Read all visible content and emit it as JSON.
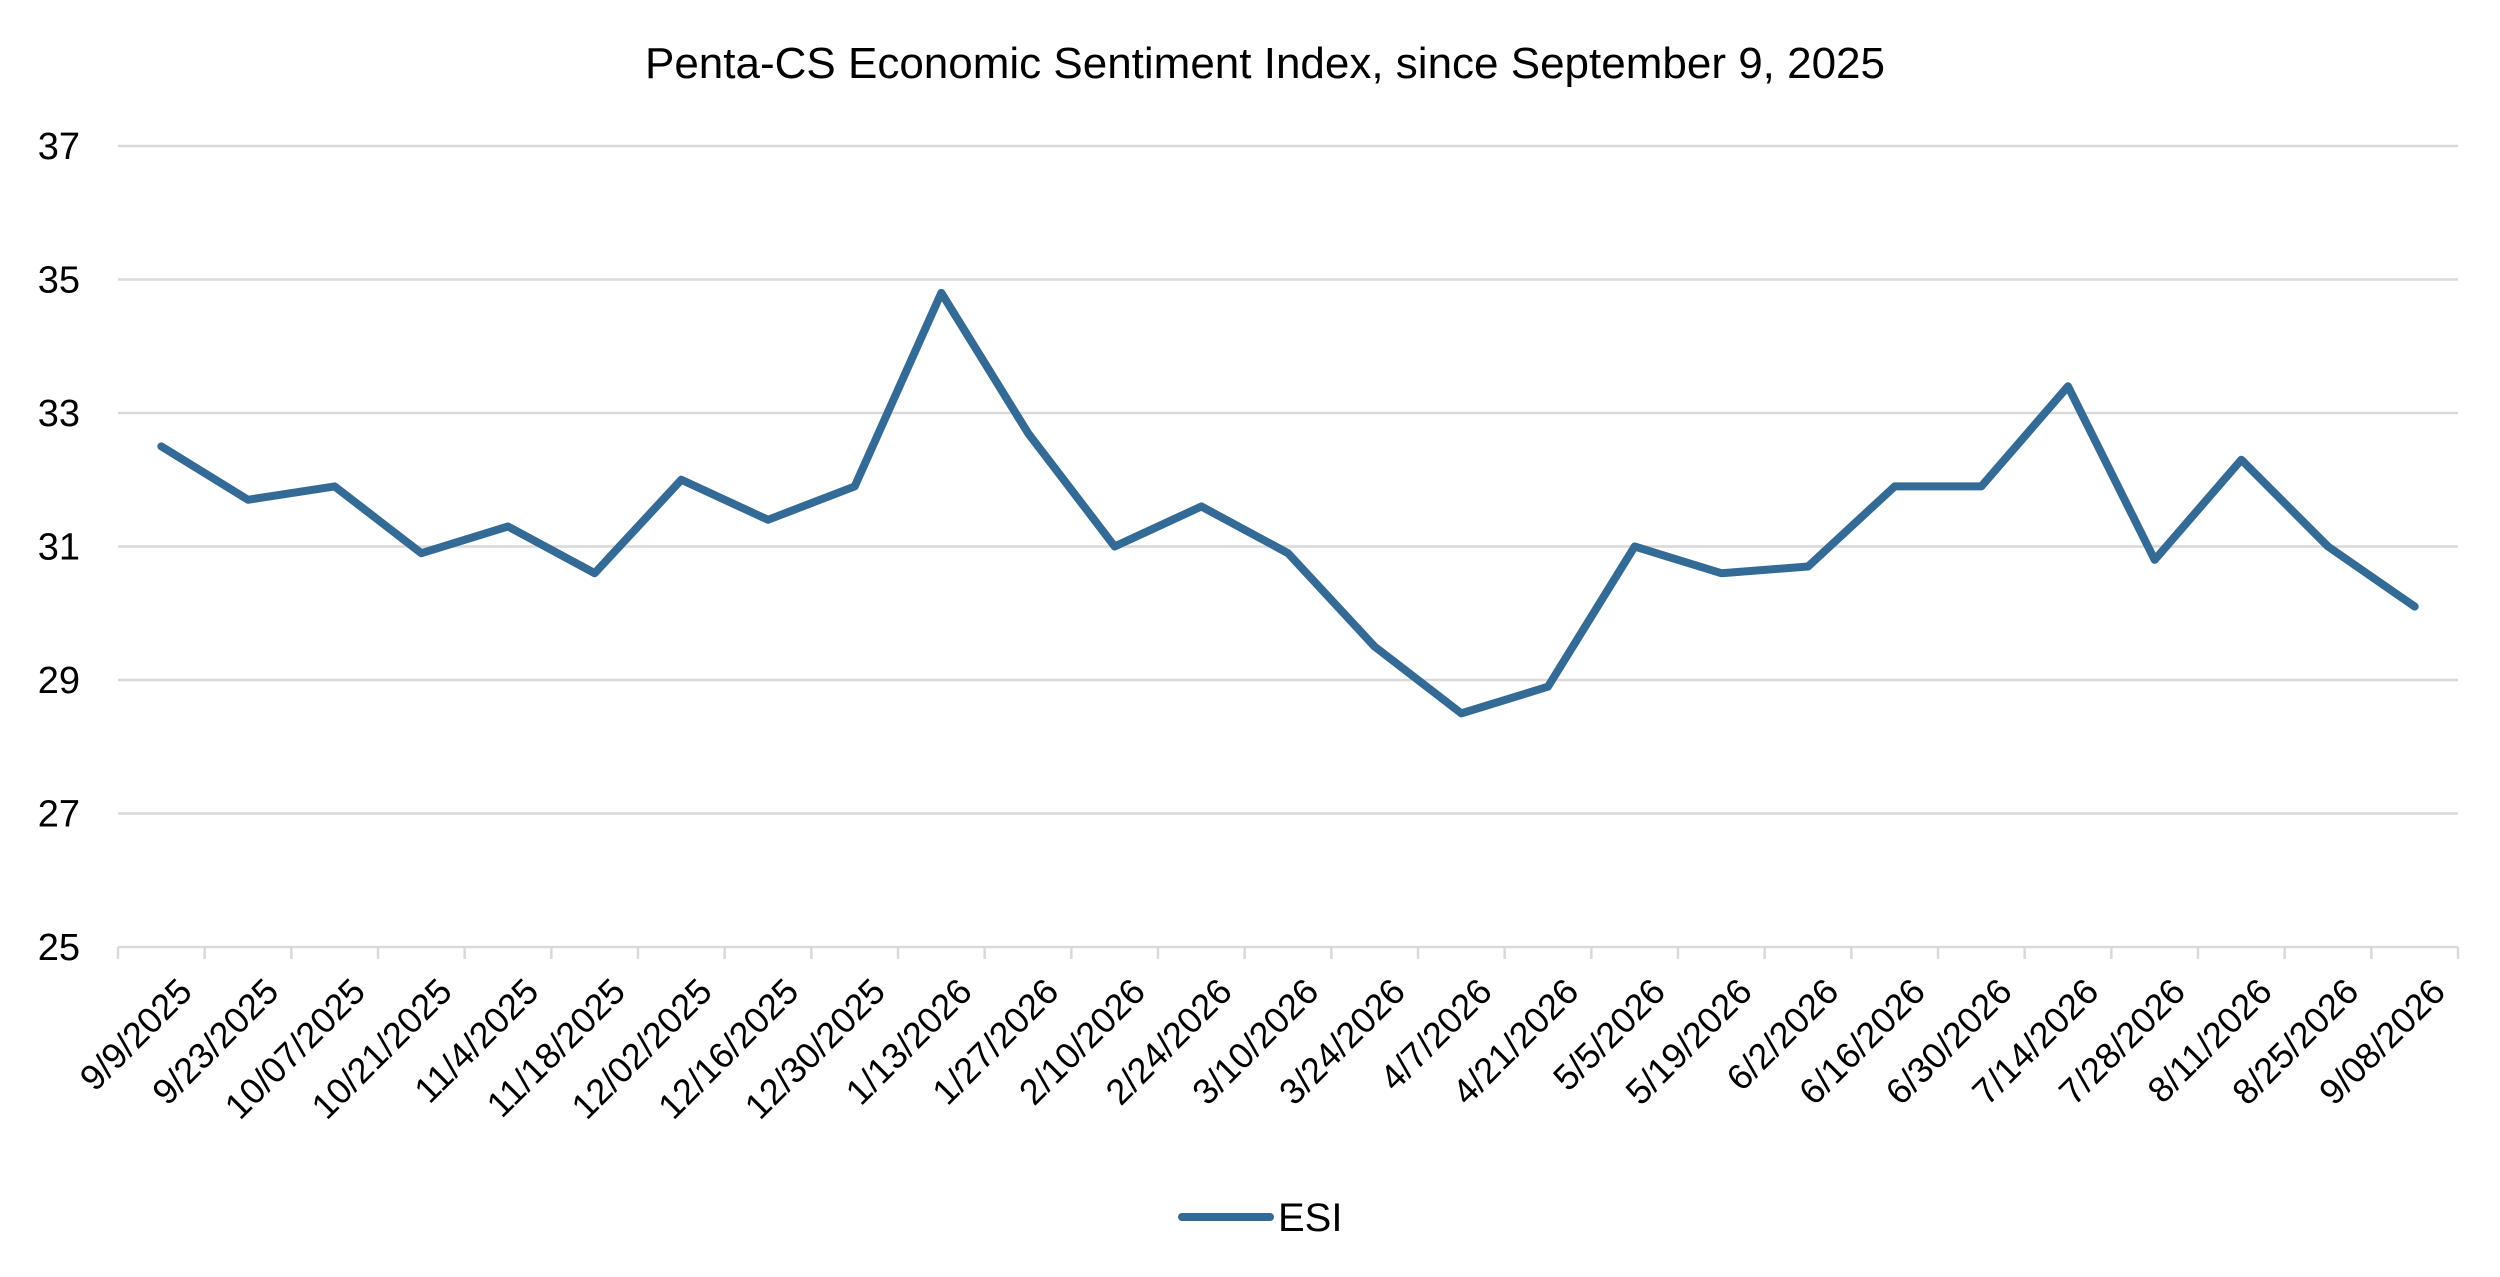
{
  "chart_data": {
    "type": "line",
    "title": "Penta-CS Economic Sentiment Index, since September 9, 2025",
    "xlabel": "",
    "ylabel": "",
    "ylim": [
      25,
      37
    ],
    "yticks": [
      25,
      27,
      29,
      31,
      33,
      35,
      37
    ],
    "grid": true,
    "legend_position": "bottom",
    "categories": [
      "9/9/2025",
      "9/23/2025",
      "10/07/2025",
      "10/21/2025",
      "11/4/2025",
      "11/18/2025",
      "12/02/2025",
      "12/16/2025",
      "12/30/2025",
      "1/13/2026",
      "1/27/2026",
      "2/10/2026",
      "2/24/2026",
      "3/10/2026",
      "3/24/2026",
      "4/7/2026",
      "4/21/2026",
      "5/5/2026",
      "5/19/2026",
      "6/2/2026",
      "6/16/2026",
      "6/30/2026",
      "7/14/2026",
      "7/28/2026",
      "8/11/2026",
      "8/25/2026",
      "9/08/2026"
    ],
    "series": [
      {
        "name": "ESI",
        "color": "#336b96",
        "values": [
          32.5,
          31.7,
          31.9,
          30.9,
          31.3,
          30.6,
          32.0,
          31.4,
          31.9,
          34.8,
          32.7,
          31.0,
          31.6,
          30.9,
          29.5,
          28.5,
          28.9,
          31.0,
          30.6,
          30.7,
          31.9,
          31.9,
          33.4,
          30.8,
          32.3,
          31.0,
          30.1
        ]
      }
    ]
  }
}
